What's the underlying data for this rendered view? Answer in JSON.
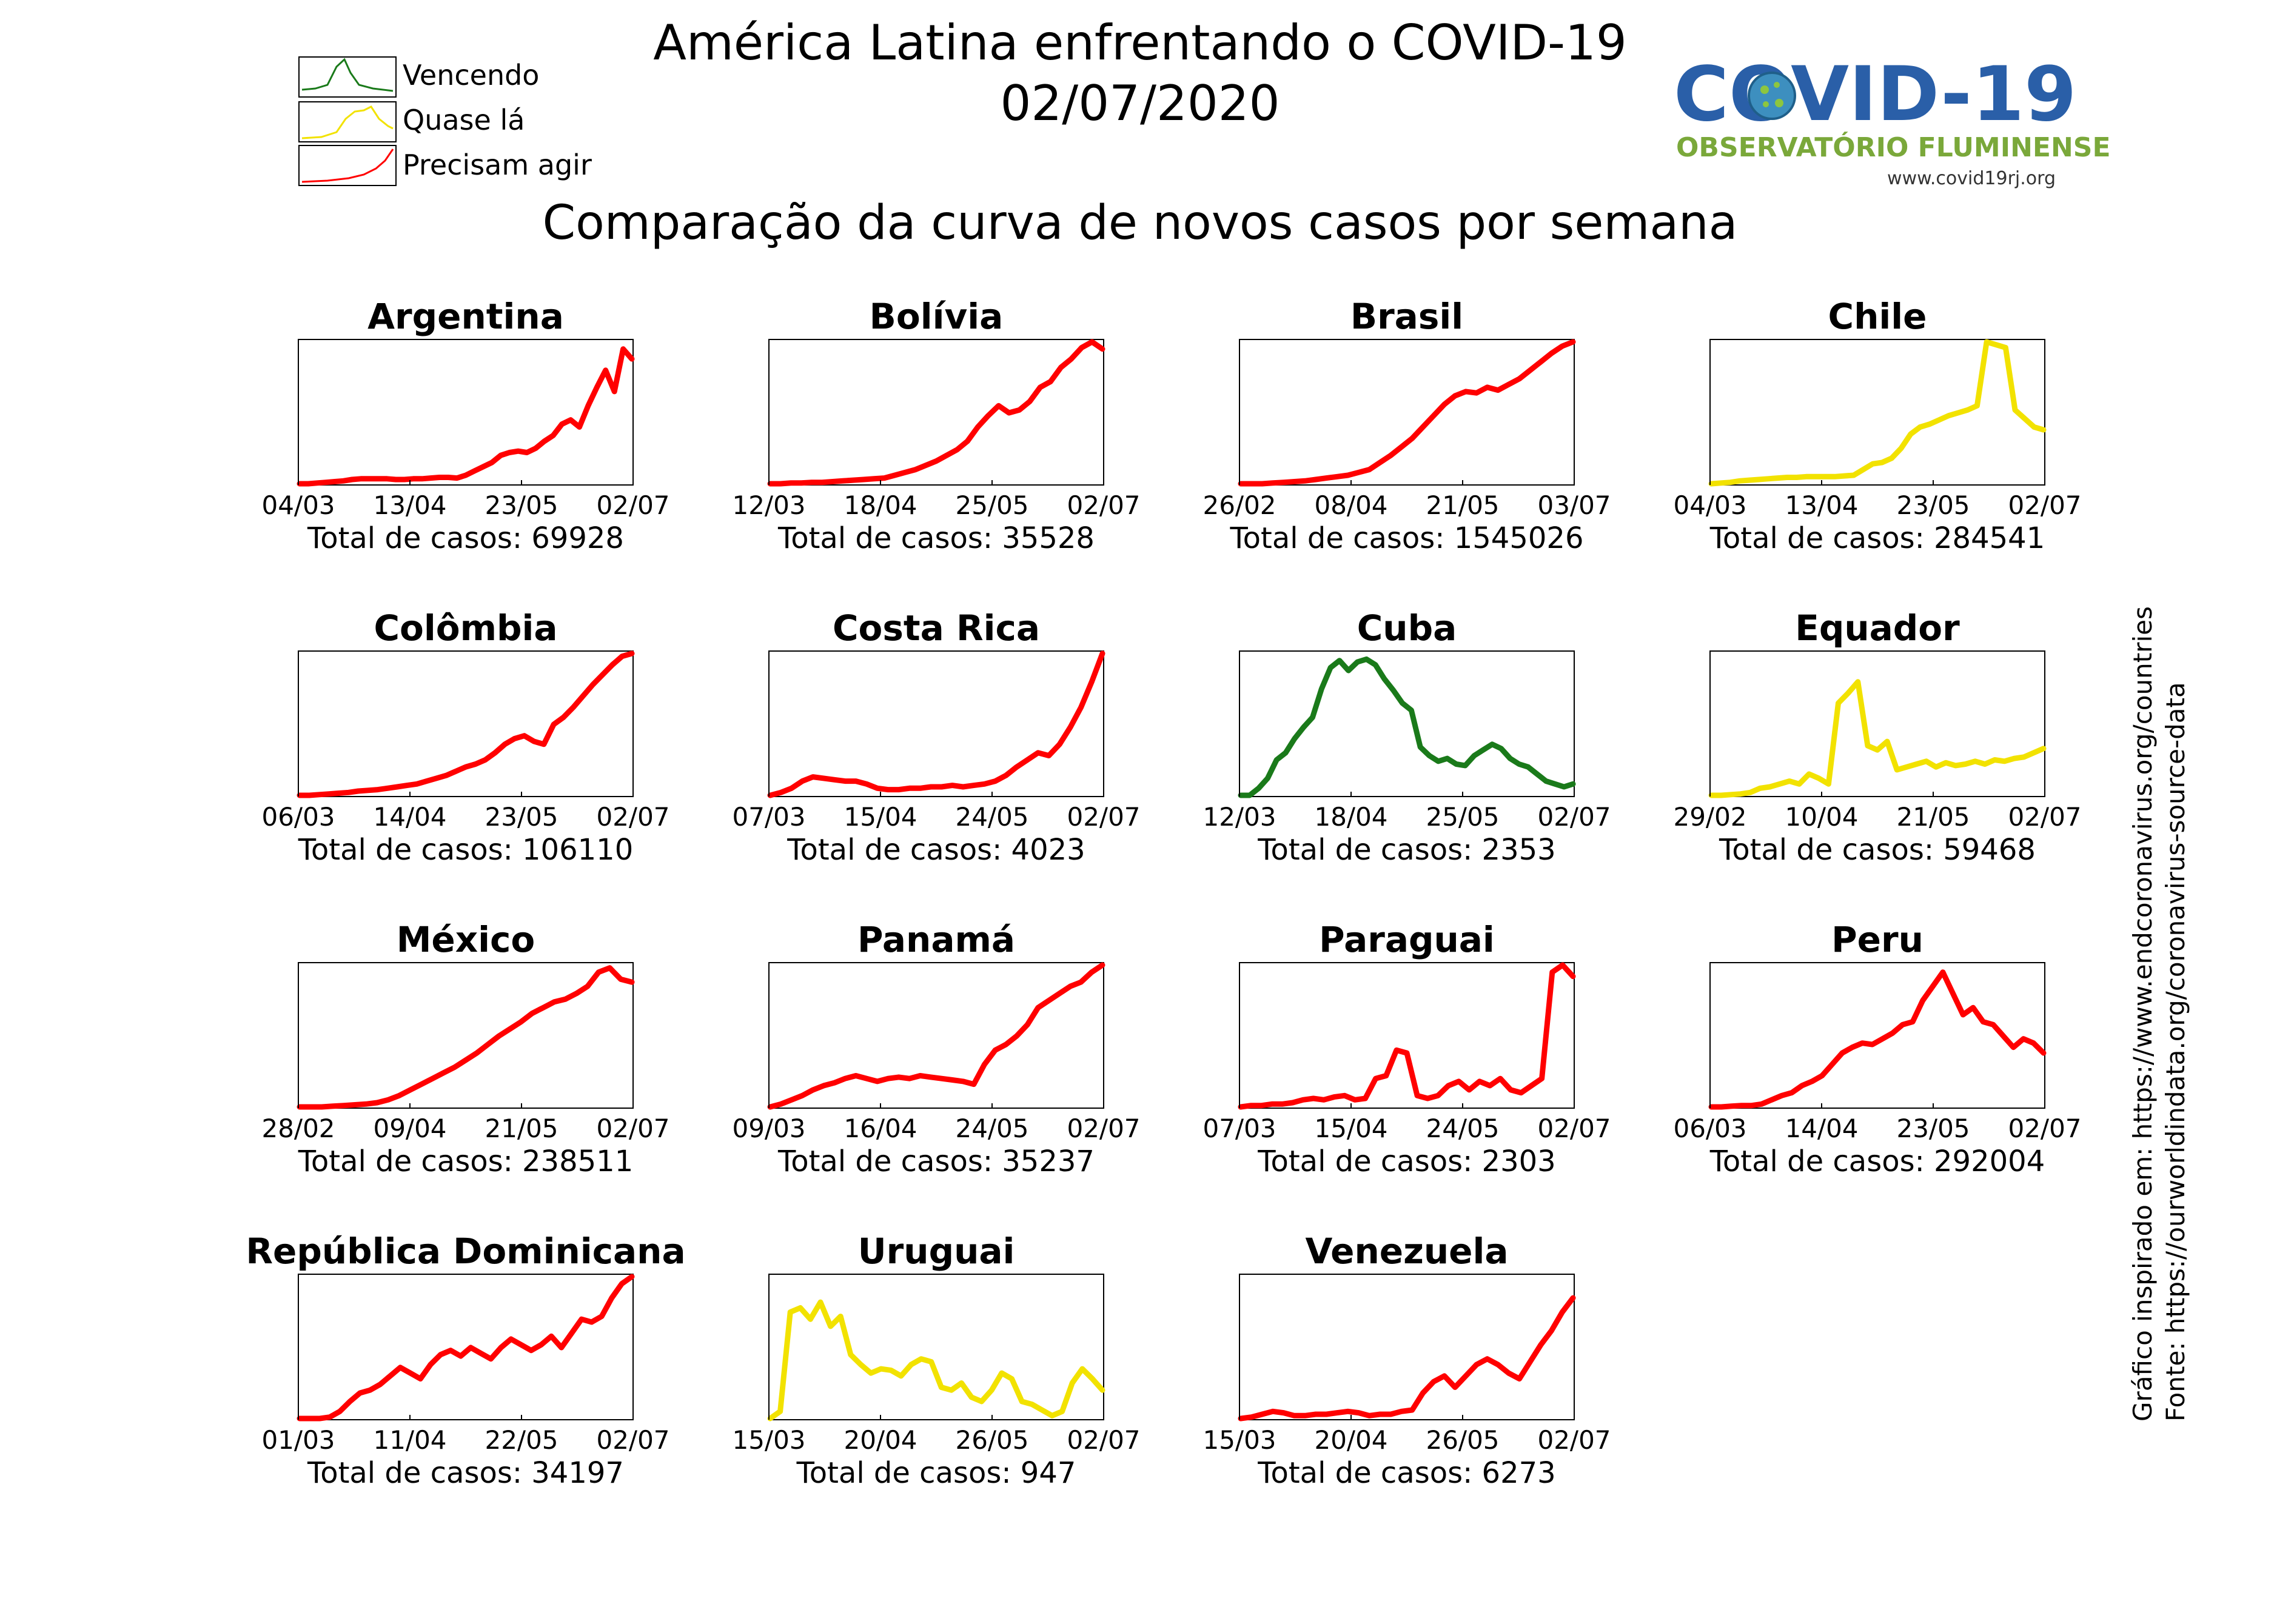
{
  "header": {
    "title": "América Latina enfrentando o COVID-19",
    "date": "02/07/2020",
    "subtitle": "Comparação da curva de novos casos por semana"
  },
  "legend": [
    {
      "label": "Vencendo",
      "color": "#1a7a1a"
    },
    {
      "label": "Quase lá",
      "color": "#f2e200"
    },
    {
      "label": "Precisam agir",
      "color": "#ff0000"
    }
  ],
  "logo": {
    "brand": "COVID-19",
    "org": "OBSERVATÓRIO FLUMINENSE",
    "url": "www.covid19rj.org"
  },
  "credits": {
    "inspired": "Gráfico inspirado em: https://www.endcoronavirus.org/countries",
    "source": "Fonte: https://ourworldindata.org/coronavirus-source-data"
  },
  "total_prefix": "Total de casos: ",
  "colors": {
    "green": "#1a7a1a",
    "yellow": "#f2e200",
    "red": "#ff0000"
  },
  "chart_data": [
    {
      "type": "line",
      "title": "Argentina",
      "status": "red",
      "ticks": [
        "04/03",
        "13/04",
        "23/05",
        "02/07"
      ],
      "total": "69928",
      "series": [
        {
          "values": [
            0,
            0,
            0.005,
            0.01,
            0.015,
            0.02,
            0.03,
            0.035,
            0.035,
            0.035,
            0.035,
            0.03,
            0.03,
            0.035,
            0.035,
            0.04,
            0.045,
            0.045,
            0.04,
            0.06,
            0.09,
            0.12,
            0.15,
            0.2,
            0.22,
            0.23,
            0.22,
            0.25,
            0.3,
            0.34,
            0.42,
            0.45,
            0.4,
            0.55,
            0.68,
            0.8,
            0.65,
            0.95,
            0.88
          ]
        }
      ]
    },
    {
      "type": "line",
      "title": "Bolívia",
      "status": "red",
      "ticks": [
        "12/03",
        "18/04",
        "25/05",
        "02/07"
      ],
      "total": "35528",
      "series": [
        {
          "values": [
            0,
            0,
            0.005,
            0.005,
            0.01,
            0.01,
            0.015,
            0.02,
            0.025,
            0.03,
            0.035,
            0.04,
            0.06,
            0.08,
            0.1,
            0.13,
            0.16,
            0.2,
            0.24,
            0.3,
            0.4,
            0.48,
            0.55,
            0.5,
            0.52,
            0.58,
            0.68,
            0.72,
            0.82,
            0.88,
            0.96,
            1.0,
            0.95
          ]
        }
      ]
    },
    {
      "type": "line",
      "title": "Brasil",
      "status": "red",
      "ticks": [
        "26/02",
        "08/04",
        "21/05",
        "03/07"
      ],
      "total": "1545026",
      "series": [
        {
          "values": [
            0,
            0,
            0,
            0.005,
            0.01,
            0.015,
            0.02,
            0.03,
            0.04,
            0.05,
            0.06,
            0.08,
            0.1,
            0.15,
            0.2,
            0.26,
            0.32,
            0.4,
            0.48,
            0.56,
            0.62,
            0.65,
            0.64,
            0.68,
            0.66,
            0.7,
            0.74,
            0.8,
            0.86,
            0.92,
            0.97,
            1.0
          ]
        }
      ]
    },
    {
      "type": "line",
      "title": "Chile",
      "status": "yellow",
      "ticks": [
        "04/03",
        "13/04",
        "23/05",
        "02/07"
      ],
      "total": "284541",
      "series": [
        {
          "values": [
            0,
            0.005,
            0.01,
            0.02,
            0.025,
            0.03,
            0.035,
            0.04,
            0.045,
            0.045,
            0.05,
            0.05,
            0.05,
            0.05,
            0.055,
            0.06,
            0.1,
            0.14,
            0.15,
            0.18,
            0.25,
            0.35,
            0.4,
            0.42,
            0.45,
            0.48,
            0.5,
            0.52,
            0.55,
            1.0,
            0.98,
            0.96,
            0.52,
            0.46,
            0.4,
            0.38
          ]
        }
      ]
    },
    {
      "type": "line",
      "title": "Colômbia",
      "status": "red",
      "ticks": [
        "06/03",
        "14/04",
        "23/05",
        "02/07"
      ],
      "total": "106110",
      "series": [
        {
          "values": [
            0,
            0,
            0.005,
            0.01,
            0.015,
            0.02,
            0.03,
            0.035,
            0.04,
            0.05,
            0.06,
            0.07,
            0.08,
            0.1,
            0.12,
            0.14,
            0.17,
            0.2,
            0.22,
            0.25,
            0.3,
            0.36,
            0.4,
            0.42,
            0.38,
            0.36,
            0.5,
            0.55,
            0.62,
            0.7,
            0.78,
            0.85,
            0.92,
            0.98,
            1.0
          ]
        }
      ]
    },
    {
      "type": "line",
      "title": "Costa Rica",
      "status": "red",
      "ticks": [
        "07/03",
        "15/04",
        "24/05",
        "02/07"
      ],
      "total": "4023",
      "series": [
        {
          "values": [
            0,
            0.02,
            0.05,
            0.1,
            0.13,
            0.12,
            0.11,
            0.1,
            0.1,
            0.08,
            0.05,
            0.04,
            0.04,
            0.05,
            0.05,
            0.06,
            0.06,
            0.07,
            0.06,
            0.07,
            0.08,
            0.1,
            0.14,
            0.2,
            0.25,
            0.3,
            0.28,
            0.36,
            0.48,
            0.62,
            0.8,
            1.0
          ]
        }
      ]
    },
    {
      "type": "line",
      "title": "Cuba",
      "status": "green",
      "ticks": [
        "12/03",
        "18/04",
        "25/05",
        "02/07"
      ],
      "total": "2353",
      "series": [
        {
          "values": [
            0,
            0,
            0.05,
            0.12,
            0.25,
            0.3,
            0.4,
            0.48,
            0.55,
            0.75,
            0.9,
            0.95,
            0.88,
            0.94,
            0.96,
            0.92,
            0.82,
            0.74,
            0.65,
            0.6,
            0.34,
            0.28,
            0.24,
            0.26,
            0.22,
            0.21,
            0.28,
            0.32,
            0.36,
            0.33,
            0.26,
            0.22,
            0.2,
            0.15,
            0.1,
            0.08,
            0.06,
            0.08
          ]
        }
      ]
    },
    {
      "type": "line",
      "title": "Equador",
      "status": "yellow",
      "ticks": [
        "29/02",
        "10/04",
        "21/05",
        "02/07"
      ],
      "total": "59468",
      "series": [
        {
          "values": [
            0,
            0,
            0.005,
            0.01,
            0.02,
            0.05,
            0.06,
            0.08,
            0.1,
            0.08,
            0.15,
            0.12,
            0.08,
            0.65,
            0.72,
            0.8,
            0.35,
            0.32,
            0.38,
            0.18,
            0.2,
            0.22,
            0.24,
            0.2,
            0.23,
            0.21,
            0.22,
            0.24,
            0.22,
            0.25,
            0.24,
            0.26,
            0.27,
            0.3,
            0.33
          ]
        }
      ]
    },
    {
      "type": "line",
      "title": "México",
      "status": "red",
      "ticks": [
        "28/02",
        "09/04",
        "21/05",
        "02/07"
      ],
      "total": "238511",
      "series": [
        {
          "values": [
            0,
            0,
            0,
            0.005,
            0.01,
            0.015,
            0.02,
            0.03,
            0.05,
            0.08,
            0.12,
            0.16,
            0.2,
            0.24,
            0.28,
            0.33,
            0.38,
            0.44,
            0.5,
            0.55,
            0.6,
            0.66,
            0.7,
            0.74,
            0.76,
            0.8,
            0.85,
            0.95,
            0.98,
            0.9,
            0.88
          ]
        }
      ]
    },
    {
      "type": "line",
      "title": "Panamá",
      "status": "red",
      "ticks": [
        "09/03",
        "16/04",
        "24/05",
        "02/07"
      ],
      "total": "35237",
      "series": [
        {
          "values": [
            0,
            0.02,
            0.05,
            0.08,
            0.12,
            0.15,
            0.17,
            0.2,
            0.22,
            0.2,
            0.18,
            0.2,
            0.21,
            0.2,
            0.22,
            0.21,
            0.2,
            0.19,
            0.18,
            0.16,
            0.3,
            0.4,
            0.44,
            0.5,
            0.58,
            0.7,
            0.75,
            0.8,
            0.85,
            0.88,
            0.95,
            1.0
          ]
        }
      ]
    },
    {
      "type": "line",
      "title": "Paraguai",
      "status": "red",
      "ticks": [
        "07/03",
        "15/04",
        "24/05",
        "02/07"
      ],
      "total": "2303",
      "series": [
        {
          "values": [
            0,
            0.01,
            0.01,
            0.02,
            0.02,
            0.03,
            0.05,
            0.06,
            0.05,
            0.07,
            0.08,
            0.05,
            0.06,
            0.2,
            0.22,
            0.4,
            0.38,
            0.08,
            0.06,
            0.08,
            0.15,
            0.18,
            0.12,
            0.18,
            0.15,
            0.2,
            0.12,
            0.1,
            0.15,
            0.2,
            0.95,
            1.0,
            0.92
          ]
        }
      ]
    },
    {
      "type": "line",
      "title": "Peru",
      "status": "red",
      "ticks": [
        "06/03",
        "14/04",
        "23/05",
        "02/07"
      ],
      "total": "292004",
      "series": [
        {
          "values": [
            0,
            0,
            0.005,
            0.01,
            0.01,
            0.02,
            0.05,
            0.08,
            0.1,
            0.15,
            0.18,
            0.22,
            0.3,
            0.38,
            0.42,
            0.45,
            0.44,
            0.48,
            0.52,
            0.58,
            0.6,
            0.75,
            0.85,
            0.95,
            0.8,
            0.65,
            0.7,
            0.6,
            0.58,
            0.5,
            0.42,
            0.48,
            0.45,
            0.38
          ]
        }
      ]
    },
    {
      "type": "line",
      "title": "República Dominicana",
      "status": "red",
      "ticks": [
        "01/03",
        "11/04",
        "22/05",
        "02/07"
      ],
      "total": "34197",
      "series": [
        {
          "values": [
            0,
            0,
            0,
            0.01,
            0.05,
            0.12,
            0.18,
            0.2,
            0.24,
            0.3,
            0.36,
            0.32,
            0.28,
            0.38,
            0.45,
            0.48,
            0.44,
            0.5,
            0.46,
            0.42,
            0.5,
            0.56,
            0.52,
            0.48,
            0.52,
            0.58,
            0.5,
            0.6,
            0.7,
            0.68,
            0.72,
            0.85,
            0.95,
            1.0
          ]
        }
      ]
    },
    {
      "type": "line",
      "title": "Uruguai",
      "status": "yellow",
      "ticks": [
        "15/03",
        "20/04",
        "26/05",
        "02/07"
      ],
      "total": "947",
      "series": [
        {
          "values": [
            0,
            0.05,
            0.75,
            0.78,
            0.7,
            0.82,
            0.65,
            0.72,
            0.45,
            0.38,
            0.32,
            0.35,
            0.34,
            0.3,
            0.38,
            0.42,
            0.4,
            0.22,
            0.2,
            0.25,
            0.15,
            0.12,
            0.2,
            0.32,
            0.28,
            0.12,
            0.1,
            0.06,
            0.02,
            0.05,
            0.25,
            0.35,
            0.28,
            0.2
          ]
        }
      ]
    },
    {
      "type": "line",
      "title": "Venezuela",
      "status": "red",
      "ticks": [
        "15/03",
        "20/04",
        "26/05",
        "02/07"
      ],
      "total": "6273",
      "series": [
        {
          "values": [
            0,
            0.01,
            0.03,
            0.05,
            0.04,
            0.02,
            0.02,
            0.03,
            0.03,
            0.04,
            0.05,
            0.04,
            0.02,
            0.03,
            0.03,
            0.05,
            0.06,
            0.18,
            0.26,
            0.3,
            0.22,
            0.3,
            0.38,
            0.42,
            0.38,
            0.32,
            0.28,
            0.4,
            0.52,
            0.62,
            0.75,
            0.85
          ]
        }
      ]
    }
  ]
}
